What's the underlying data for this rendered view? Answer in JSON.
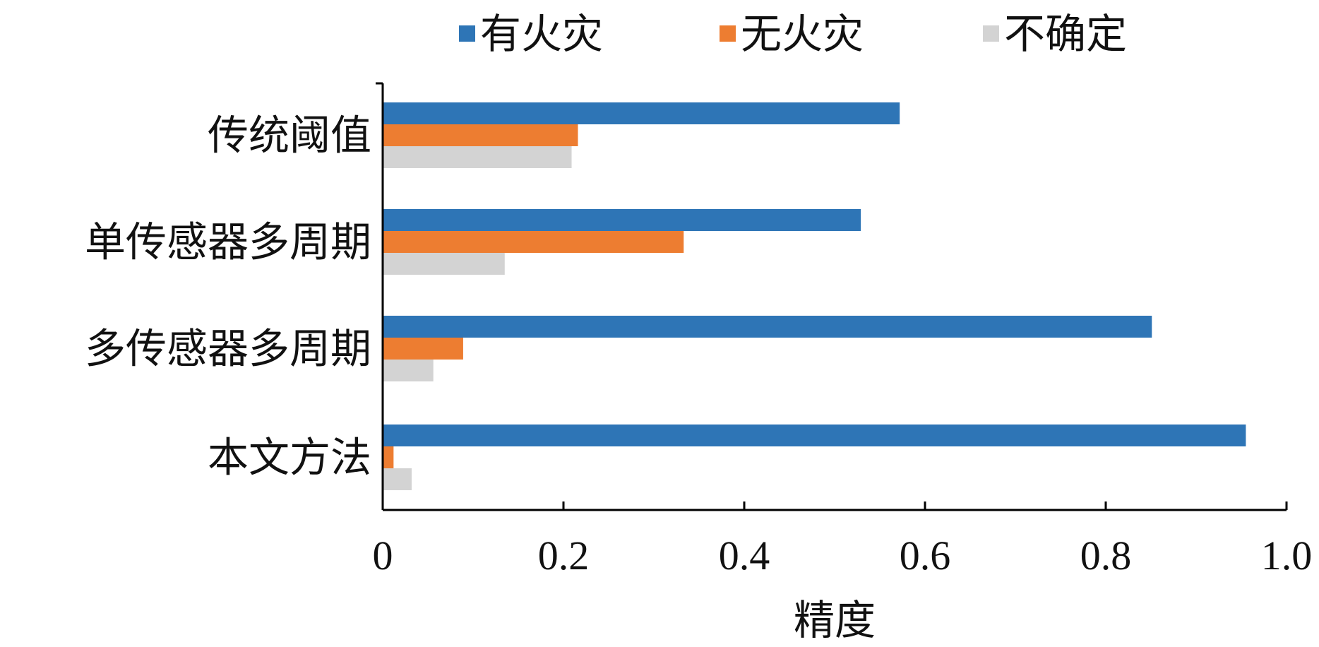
{
  "chart_data": {
    "type": "bar",
    "orientation": "horizontal",
    "categories": [
      "传统阈值",
      "单传感器多周期",
      "多传感器多周期",
      "本文方法"
    ],
    "series": [
      {
        "name": "有火灾",
        "color": "#2E75B6",
        "values": [
          0.572,
          0.529,
          0.851,
          0.955
        ]
      },
      {
        "name": "无火灾",
        "color": "#ED7D31",
        "values": [
          0.216,
          0.333,
          0.089,
          0.012
        ]
      },
      {
        "name": "不确定",
        "color": "#D3D3D3",
        "values": [
          0.209,
          0.135,
          0.056,
          0.032
        ]
      }
    ],
    "xlabel": "精度",
    "ylabel": "",
    "title": "",
    "xlim": [
      0,
      1.0
    ],
    "xticks": [
      "0",
      "0.2",
      "0.4",
      "0.6",
      "0.8",
      "1.0"
    ],
    "legend_position": "top",
    "grid": false
  }
}
